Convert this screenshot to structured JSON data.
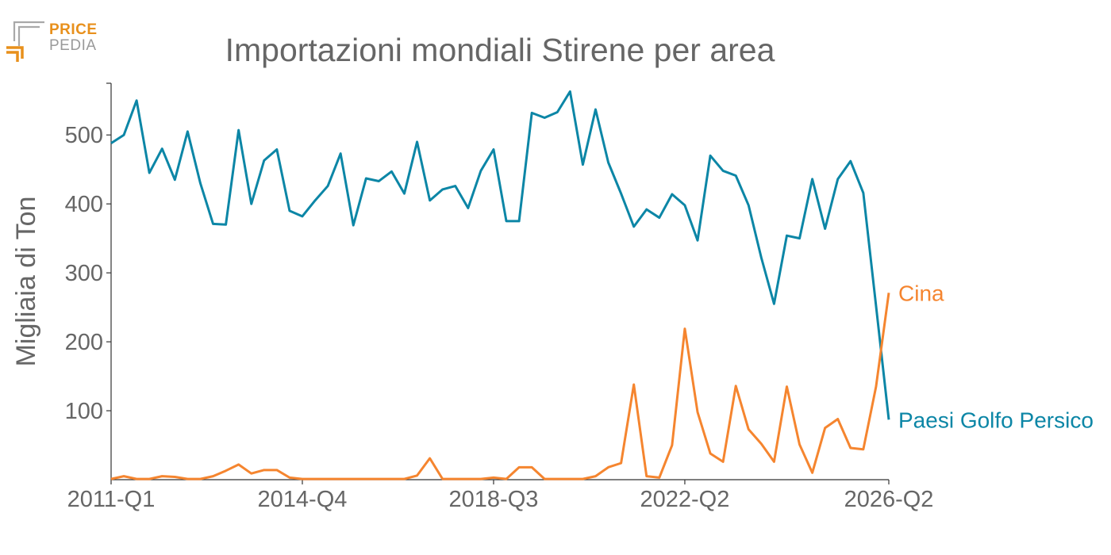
{
  "logo": {
    "line1": "PRICE",
    "line2": "PEDIA",
    "accent_color": "#e8901c",
    "gray_color": "#9a9a9a"
  },
  "chart_data": {
    "type": "line",
    "title": "Importazioni mondiali Stirene per area",
    "xlabel": "",
    "ylabel": "Migliaia di Ton",
    "ylim": [
      0,
      575
    ],
    "yticks": [
      100,
      200,
      300,
      400,
      500
    ],
    "x_tick_labels": [
      "2011-Q1",
      "2014-Q4",
      "2018-Q3",
      "2022-Q2",
      "2026-Q2"
    ],
    "x_tick_index": [
      0,
      15,
      30,
      45,
      61
    ],
    "grid": false,
    "x": [
      "2011-Q1",
      "2011-Q2",
      "2011-Q3",
      "2011-Q4",
      "2012-Q1",
      "2012-Q2",
      "2012-Q3",
      "2012-Q4",
      "2013-Q1",
      "2013-Q2",
      "2013-Q3",
      "2013-Q4",
      "2014-Q1",
      "2014-Q2",
      "2014-Q3",
      "2014-Q4",
      "2015-Q1",
      "2015-Q2",
      "2015-Q3",
      "2015-Q4",
      "2016-Q1",
      "2016-Q2",
      "2016-Q3",
      "2016-Q4",
      "2017-Q1",
      "2017-Q2",
      "2017-Q3",
      "2017-Q4",
      "2018-Q1",
      "2018-Q2",
      "2018-Q3",
      "2018-Q4",
      "2019-Q1",
      "2019-Q2",
      "2019-Q3",
      "2019-Q4",
      "2020-Q1",
      "2020-Q2",
      "2020-Q3",
      "2020-Q4",
      "2021-Q1",
      "2021-Q2",
      "2021-Q3",
      "2021-Q4",
      "2022-Q1",
      "2022-Q2",
      "2022-Q3",
      "2022-Q4",
      "2023-Q1",
      "2023-Q2",
      "2023-Q3",
      "2023-Q4",
      "2024-Q1",
      "2024-Q2",
      "2024-Q3",
      "2024-Q4",
      "2025-Q1",
      "2025-Q2",
      "2025-Q3",
      "2025-Q4",
      "2026-Q1",
      "2026-Q2"
    ],
    "series": [
      {
        "name": "Paesi Golfo Persico",
        "color": "#0c86a6",
        "values": [
          488,
          500,
          550,
          445,
          480,
          435,
          505,
          430,
          371,
          370,
          507,
          400,
          463,
          479,
          390,
          382,
          405,
          426,
          473,
          369,
          437,
          433,
          447,
          415,
          490,
          405,
          421,
          426,
          394,
          448,
          479,
          375,
          375,
          532,
          525,
          533,
          563,
          457,
          537,
          460,
          415,
          367,
          392,
          380,
          414,
          398,
          347,
          470,
          448,
          441,
          398,
          322,
          255,
          354,
          350,
          436,
          364,
          436,
          462,
          416,
          252,
          87
        ]
      },
      {
        "name": "Cina",
        "color": "#f5852f",
        "values": [
          1,
          5,
          1,
          1,
          5,
          4,
          1,
          1,
          5,
          13,
          22,
          9,
          14,
          14,
          3,
          1,
          1,
          1,
          1,
          1,
          1,
          1,
          1,
          1,
          6,
          31,
          1,
          1,
          1,
          1,
          3,
          1,
          18,
          18,
          1,
          1,
          1,
          1,
          5,
          18,
          24,
          138,
          5,
          3,
          50,
          219,
          98,
          38,
          26,
          136,
          73,
          52,
          26,
          135,
          51,
          10,
          75,
          88,
          46,
          44,
          135,
          271
        ]
      }
    ]
  }
}
